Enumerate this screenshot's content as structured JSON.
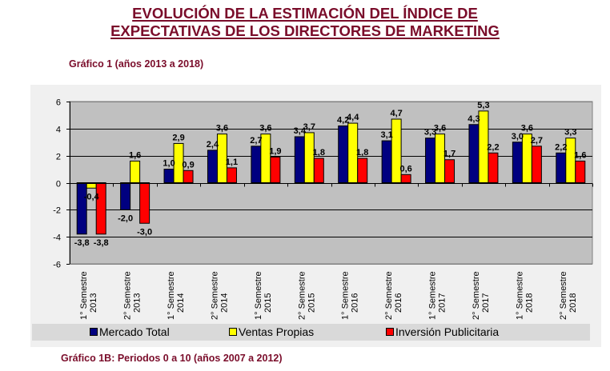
{
  "header": {
    "title_line1": "EVOLUCIÓN DE LA ESTIMACIÓN DEL ÍNDICE DE",
    "title_line2": "EXPECTATIVAS DE LOS DIRECTORES DE MARKETING",
    "subtitle": "Gráfico 1 (años 2013 a 2018)",
    "next_subtitle": "Gráfico 1B: Periodos 0 a 10 (años 2007 a 2012)"
  },
  "colors": {
    "title": "#7a0c2a",
    "plot_bg": "#c0c0c0",
    "panel_bg": "#f0f0f0",
    "legend_bg": "#d9d9d9"
  },
  "chart_data": {
    "type": "bar",
    "title": "Gráfico 1 (años 2013 a 2018)",
    "xlabel": "",
    "ylabel": "",
    "ylim": [
      -6,
      6
    ],
    "yticks": [
      6,
      4,
      2,
      0,
      -2,
      -4,
      -6
    ],
    "ytick_labels": [
      "6",
      "4",
      "2",
      "0",
      "-2",
      "-4",
      "-6"
    ],
    "grid": true,
    "legend_position": "bottom",
    "categories": [
      [
        "1° Semestre",
        "2013"
      ],
      [
        "2° Semestre",
        "2013"
      ],
      [
        "1° Semestre",
        "2014"
      ],
      [
        "2° Semestre",
        "2014"
      ],
      [
        "1° Semestre",
        "2015"
      ],
      [
        "2° Semestre",
        "2015"
      ],
      [
        "1° Semestre",
        "2016"
      ],
      [
        "2° Semestre",
        "2016"
      ],
      [
        "1° Semestre",
        "2017"
      ],
      [
        "2° Semestre",
        "2017"
      ],
      [
        "1° Semestre",
        "2018"
      ],
      [
        "2° Semestre",
        "2018"
      ]
    ],
    "series": [
      {
        "name": "Mercado Total",
        "color": "#000080",
        "values": [
          -3.8,
          -2.0,
          1.0,
          2.4,
          2.7,
          3.4,
          4.2,
          3.1,
          3.3,
          4.3,
          3.0,
          2.2
        ],
        "labels": [
          "-3,8",
          "-2,0",
          "1,0",
          "2,4",
          "2,7",
          "3,4",
          "4,2",
          "3,1",
          "3,3",
          "4,3",
          "3,0",
          "2,2"
        ]
      },
      {
        "name": "Ventas Propias",
        "color": "#ffff00",
        "values": [
          -0.4,
          1.6,
          2.9,
          3.6,
          3.6,
          3.7,
          4.4,
          4.7,
          3.6,
          5.3,
          3.6,
          3.3
        ],
        "labels": [
          "-0,4",
          "1,6",
          "2,9",
          "3,6",
          "3,6",
          "3,7",
          "4,4",
          "4,7",
          "3,6",
          "5,3",
          "3,6",
          "3,3"
        ]
      },
      {
        "name": "Inversión Publicitaria",
        "color": "#ff0000",
        "values": [
          -3.8,
          -3.0,
          0.9,
          1.1,
          1.9,
          1.8,
          1.8,
          0.6,
          1.7,
          2.2,
          2.7,
          1.6
        ],
        "labels": [
          "-3,8",
          "-3,0",
          "0,9",
          "1,1",
          "1,9",
          "1,8",
          "1,8",
          "0,6",
          "1,7",
          "2,2",
          "2,7",
          "1,6"
        ]
      }
    ]
  }
}
